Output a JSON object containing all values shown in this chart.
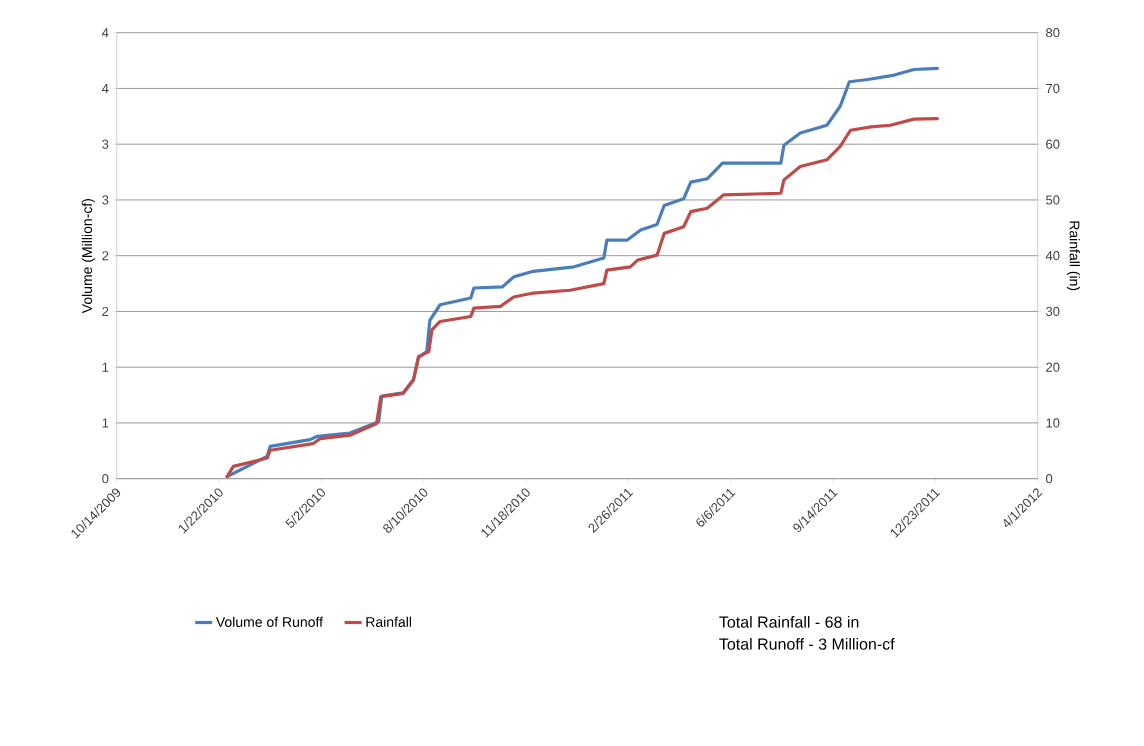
{
  "chart_data": {
    "type": "line",
    "xlabel": null,
    "ylabel": "Volume (Million-cf)",
    "y2label": "Rainfall  (in)",
    "xlim": [
      "2009-10-14",
      "2012-04-01"
    ],
    "xticks": [
      {
        "value": "2009-10-14",
        "label": "10/14/2009"
      },
      {
        "value": "2010-01-22",
        "label": "1/22/2010"
      },
      {
        "value": "2010-05-02",
        "label": "5/2/2010"
      },
      {
        "value": "2010-08-10",
        "label": "8/10/2010"
      },
      {
        "value": "2010-11-18",
        "label": "11/18/2010"
      },
      {
        "value": "2011-02-26",
        "label": "2/26/2011"
      },
      {
        "value": "2011-06-06",
        "label": "6/6/2011"
      },
      {
        "value": "2011-09-14",
        "label": "9/14/2011"
      },
      {
        "value": "2011-12-23",
        "label": "12/23/2011"
      },
      {
        "value": "2012-04-01",
        "label": "4/1/2012"
      }
    ],
    "ylim": [
      0,
      4
    ],
    "yticks": [
      0,
      {
        "value": 0.5,
        "label": "1"
      },
      1,
      {
        "value": 1.5,
        "label": "2"
      },
      2,
      {
        "value": 2.5,
        "label": "3"
      },
      3,
      {
        "value": 3.5,
        "label": "4"
      },
      4
    ],
    "y2lim": [
      0,
      80
    ],
    "y2ticks": [
      0,
      10,
      20,
      30,
      40,
      50,
      60,
      70,
      80
    ],
    "grid": "y",
    "legend": "bottom",
    "annotations": [
      "Total Rainfall - 68 in",
      "Total Runoff - 3 Million-cf"
    ],
    "series": [
      {
        "name": "Volume of Runoff",
        "color": "#4a7ebb",
        "x": [
          "2010-01-30",
          "2010-02-05",
          "2010-03-10",
          "2010-03-13",
          "2010-04-21",
          "2010-04-28",
          "2010-05-30",
          "2010-06-27",
          "2010-06-30",
          "2010-07-21",
          "2010-07-31",
          "2010-08-05",
          "2010-08-13",
          "2010-08-16",
          "2010-08-26",
          "2010-09-25",
          "2010-09-28",
          "2010-10-26",
          "2010-11-06",
          "2010-11-25",
          "2011-01-04",
          "2011-02-02",
          "2011-02-05",
          "2011-02-25",
          "2011-03-10",
          "2011-03-26",
          "2011-04-02",
          "2011-04-21",
          "2011-04-28",
          "2011-05-14",
          "2011-05-29",
          "2011-07-25",
          "2011-07-28",
          "2011-08-13",
          "2011-09-08",
          "2011-09-21",
          "2011-09-30",
          "2011-10-18",
          "2011-11-13",
          "2011-12-02",
          "2011-12-25"
        ],
        "values": [
          0.02,
          null,
          0.2,
          0.29,
          0.35,
          0.38,
          0.41,
          0.51,
          0.74,
          0.77,
          0.89,
          1.09,
          1.14,
          1.42,
          1.56,
          1.62,
          1.71,
          1.72,
          1.81,
          1.86,
          1.9,
          1.98,
          2.14,
          2.14,
          2.23,
          2.28,
          2.45,
          2.51,
          2.66,
          2.69,
          2.83,
          2.83,
          2.99,
          3.1,
          3.17,
          3.34,
          3.56,
          3.58,
          3.62,
          3.67,
          3.68
        ]
      },
      {
        "name": "Rainfall",
        "color": "#be4b48",
        "axis": "y2",
        "x": [
          "2010-01-30",
          "2010-02-05",
          "2010-03-10",
          "2010-03-13",
          "2010-04-24",
          "2010-05-01",
          "2010-05-30",
          "2010-06-25",
          "2010-06-29",
          "2010-07-21",
          "2010-07-31",
          "2010-08-05",
          "2010-08-15",
          "2010-08-18",
          "2010-08-26",
          "2010-09-25",
          "2010-09-28",
          "2010-10-24",
          "2010-11-06",
          "2010-11-25",
          "2010-12-31",
          "2011-02-02",
          "2011-02-05",
          "2011-02-28",
          "2011-03-07",
          "2011-03-26",
          "2011-04-02",
          "2011-04-21",
          "2011-04-28",
          "2011-05-14",
          "2011-05-30",
          "2011-07-25",
          "2011-07-28",
          "2011-08-13",
          "2011-09-08",
          "2011-09-21",
          "2011-10-01",
          "2011-10-21",
          "2011-11-09",
          "2011-12-02",
          "2011-12-25"
        ],
        "values": [
          0.4,
          2.2,
          3.7,
          5.1,
          6.3,
          7.2,
          7.8,
          9.9,
          14.7,
          15.3,
          17.7,
          21.9,
          22.8,
          26.7,
          28.2,
          29.1,
          30.6,
          30.9,
          32.6,
          33.3,
          33.8,
          35.0,
          37.4,
          38.0,
          39.2,
          40.1,
          44.0,
          45.2,
          47.9,
          48.5,
          50.9,
          51.2,
          53.6,
          56.0,
          57.2,
          59.6,
          62.5,
          63.1,
          63.4,
          64.5,
          64.6
        ]
      }
    ]
  }
}
